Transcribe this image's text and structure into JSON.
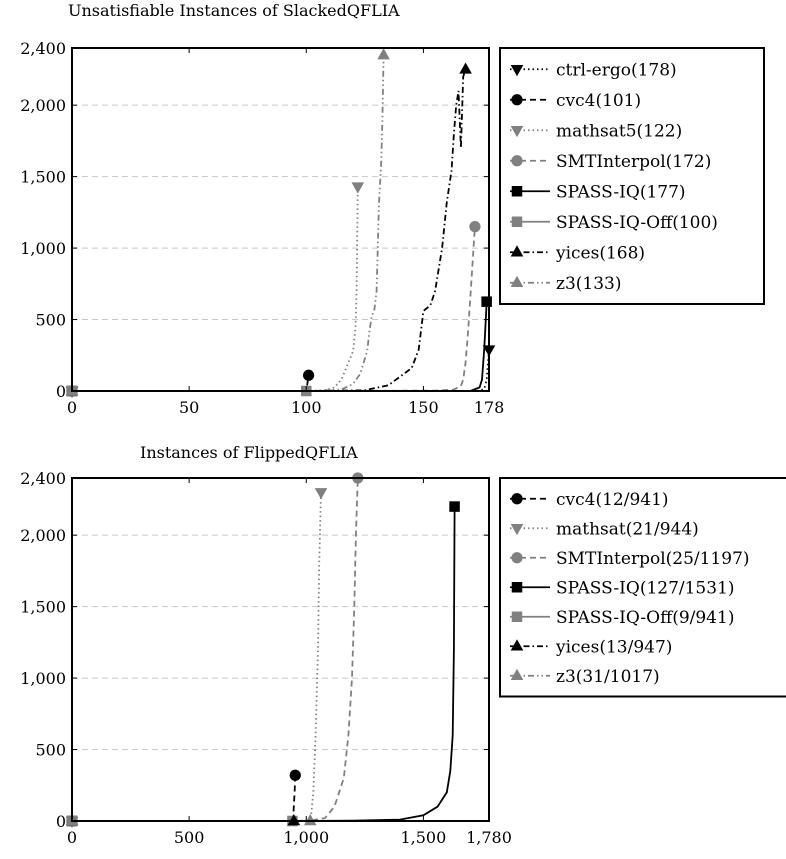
{
  "chart_data": [
    {
      "type": "line",
      "title": "Unsatisfiable Instances of SlackedQFLIA",
      "xlim": [
        0,
        178
      ],
      "ylim": [
        0,
        2400
      ],
      "x_ticks": [
        0,
        50,
        100,
        150,
        178
      ],
      "x_tick_labels": [
        "0",
        "50",
        "100",
        "150",
        "178"
      ],
      "y_ticks": [
        0,
        500,
        1000,
        1500,
        2000,
        2400
      ],
      "y_tick_labels": [
        "0",
        "500",
        "1,000",
        "1,500",
        "2,000",
        "2,400"
      ],
      "grid": "horizontal dashed",
      "legend_position": "outside-right-top",
      "series": [
        {
          "name": "ctrl-ergo(178)",
          "color": "#000000",
          "dash": "dotted",
          "marker": "triangle-down",
          "points": [
            [
              0,
              0
            ],
            [
              100,
              0
            ],
            [
              170,
              0
            ],
            [
              174,
              3
            ],
            [
              176,
              15
            ],
            [
              177,
              80
            ],
            [
              178,
              290
            ]
          ],
          "marker_at": [
            [
              0,
              0
            ],
            [
              178,
              290
            ]
          ]
        },
        {
          "name": "cvc4(101)",
          "color": "#000000",
          "dash": "dashed",
          "marker": "circle",
          "points": [
            [
              0,
              0
            ],
            [
              100,
              0
            ],
            [
              101,
              110
            ]
          ],
          "marker_at": [
            [
              0,
              0
            ],
            [
              101,
              110
            ]
          ]
        },
        {
          "name": "mathsat5(122)",
          "color": "#808080",
          "dash": "dotted",
          "marker": "triangle-down",
          "points": [
            [
              0,
              0
            ],
            [
              100,
              0
            ],
            [
              108,
              5
            ],
            [
              112,
              25
            ],
            [
              115,
              80
            ],
            [
              117,
              160
            ],
            [
              119,
              240
            ],
            [
              120,
              280
            ],
            [
              121,
              440
            ],
            [
              121.5,
              700
            ],
            [
              122,
              1430
            ]
          ],
          "marker_at": [
            [
              0,
              0
            ],
            [
              122,
              1430
            ]
          ]
        },
        {
          "name": "SMTInterpol(172)",
          "color": "#808080",
          "dash": "dashed",
          "marker": "circle",
          "points": [
            [
              0,
              0
            ],
            [
              100,
              0
            ],
            [
              155,
              3
            ],
            [
              163,
              10
            ],
            [
              166,
              35
            ],
            [
              167,
              80
            ],
            [
              168,
              200
            ],
            [
              169,
              400
            ],
            [
              170,
              650
            ],
            [
              171,
              900
            ],
            [
              172,
              1150
            ]
          ],
          "marker_at": [
            [
              0,
              0
            ],
            [
              172,
              1150
            ]
          ]
        },
        {
          "name": "SPASS-IQ(177)",
          "color": "#000000",
          "dash": "solid",
          "marker": "square",
          "points": [
            [
              0,
              0
            ],
            [
              100,
              0
            ],
            [
              170,
              0
            ],
            [
              174,
              25
            ],
            [
              175,
              80
            ],
            [
              176,
              300
            ],
            [
              177,
              625
            ]
          ],
          "marker_at": [
            [
              0,
              0
            ],
            [
              177,
              625
            ]
          ]
        },
        {
          "name": "SPASS-IQ-Off(100)",
          "color": "#808080",
          "dash": "solid",
          "marker": "square",
          "points": [
            [
              0,
              0
            ],
            [
              100,
              0
            ]
          ],
          "marker_at": [
            [
              0,
              0
            ],
            [
              100,
              0
            ]
          ]
        },
        {
          "name": "yices(168)",
          "color": "#000000",
          "dash": "dashdot",
          "marker": "triangle-up",
          "points": [
            [
              0,
              0
            ],
            [
              100,
              0
            ],
            [
              125,
              5
            ],
            [
              135,
              40
            ],
            [
              140,
              100
            ],
            [
              145,
              160
            ],
            [
              148,
              290
            ],
            [
              150,
              560
            ],
            [
              153,
              600
            ],
            [
              155,
              700
            ],
            [
              158,
              1000
            ],
            [
              160,
              1320
            ],
            [
              162,
              1540
            ],
            [
              163,
              1800
            ],
            [
              164,
              2000
            ],
            [
              165,
              2100
            ],
            [
              166,
              1700
            ],
            [
              167,
              2200
            ],
            [
              168,
              2250
            ]
          ],
          "marker_at": [
            [
              0,
              0
            ],
            [
              168,
              2250
            ]
          ]
        },
        {
          "name": "z3(133)",
          "color": "#808080",
          "dash": "dashdotdot",
          "marker": "triangle-up",
          "points": [
            [
              0,
              0
            ],
            [
              100,
              0
            ],
            [
              115,
              10
            ],
            [
              120,
              50
            ],
            [
              123,
              120
            ],
            [
              126,
              280
            ],
            [
              127,
              420
            ],
            [
              128,
              530
            ],
            [
              129,
              560
            ],
            [
              130,
              700
            ],
            [
              131,
              1300
            ],
            [
              132,
              1600
            ],
            [
              132.5,
              1900
            ],
            [
              133,
              2350
            ]
          ],
          "marker_at": [
            [
              0,
              0
            ],
            [
              133,
              2350
            ]
          ]
        }
      ]
    },
    {
      "type": "line",
      "title": "Instances of FlippedQFLIA",
      "xlim": [
        0,
        1780
      ],
      "ylim": [
        0,
        2400
      ],
      "x_ticks": [
        0,
        500,
        1000,
        1500,
        1780
      ],
      "x_tick_labels": [
        "0",
        "500",
        "1,000",
        "1,500",
        "1,780"
      ],
      "y_ticks": [
        0,
        500,
        1000,
        1500,
        2000,
        2400
      ],
      "y_tick_labels": [
        "0",
        "500",
        "1,000",
        "1,500",
        "2,000",
        "2,400"
      ],
      "grid": "horizontal dashed",
      "legend_position": "outside-right-top",
      "series": [
        {
          "name": "cvc4(12/941)",
          "color": "#000000",
          "dash": "dashed",
          "marker": "circle",
          "points": [
            [
              0,
              0
            ],
            [
              941,
              0
            ],
            [
              945,
              50
            ],
            [
              950,
              200
            ],
            [
              953,
              320
            ]
          ],
          "marker_at": [
            [
              0,
              0
            ],
            [
              953,
              320
            ]
          ]
        },
        {
          "name": "mathsat(21/944)",
          "color": "#808080",
          "dash": "dotted",
          "marker": "triangle-down",
          "points": [
            [
              0,
              0
            ],
            [
              944,
              0
            ],
            [
              1000,
              5
            ],
            [
              1020,
              30
            ],
            [
              1030,
              200
            ],
            [
              1040,
              600
            ],
            [
              1050,
              1200
            ],
            [
              1055,
              1800
            ],
            [
              1063,
              2300
            ]
          ],
          "marker_at": [
            [
              0,
              0
            ],
            [
              1063,
              2300
            ]
          ]
        },
        {
          "name": "SMTInterpol(25/1197)",
          "color": "#808080",
          "dash": "dashed",
          "marker": "circle",
          "points": [
            [
              0,
              0
            ],
            [
              1000,
              0
            ],
            [
              1080,
              20
            ],
            [
              1120,
              100
            ],
            [
              1160,
              300
            ],
            [
              1180,
              600
            ],
            [
              1195,
              1000
            ],
            [
              1205,
              1500
            ],
            [
              1212,
              2000
            ],
            [
              1220,
              2400
            ]
          ],
          "marker_at": [
            [
              0,
              0
            ],
            [
              1220,
              2400
            ]
          ]
        },
        {
          "name": "SPASS-IQ(127/1531)",
          "color": "#000000",
          "dash": "solid",
          "marker": "square",
          "points": [
            [
              0,
              0
            ],
            [
              941,
              0
            ],
            [
              1200,
              2
            ],
            [
              1400,
              10
            ],
            [
              1500,
              40
            ],
            [
              1560,
              100
            ],
            [
              1600,
              200
            ],
            [
              1615,
              350
            ],
            [
              1625,
              600
            ],
            [
              1630,
              1200
            ],
            [
              1633,
              2200
            ]
          ],
          "marker_at": [
            [
              0,
              0
            ],
            [
              1633,
              2200
            ]
          ]
        },
        {
          "name": "SPASS-IQ-Off(9/941)",
          "color": "#808080",
          "dash": "solid",
          "marker": "square",
          "points": [
            [
              0,
              0
            ],
            [
              941,
              0
            ]
          ],
          "marker_at": [
            [
              0,
              0
            ],
            [
              941,
              0
            ]
          ]
        },
        {
          "name": "yices(13/947)",
          "color": "#000000",
          "dash": "dashdot",
          "marker": "triangle-up",
          "points": [
            [
              0,
              0
            ],
            [
              947,
              0
            ]
          ],
          "marker_at": [
            [
              0,
              0
            ],
            [
              947,
              0
            ]
          ]
        },
        {
          "name": "z3(31/1017)",
          "color": "#808080",
          "dash": "dashdotdot",
          "marker": "triangle-up",
          "points": [
            [
              0,
              0
            ],
            [
              1017,
              0
            ]
          ],
          "marker_at": [
            [
              0,
              0
            ],
            [
              1017,
              0
            ]
          ]
        }
      ]
    }
  ]
}
